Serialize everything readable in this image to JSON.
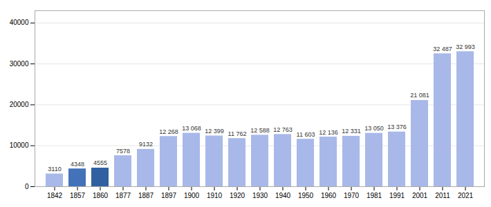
{
  "chart_data": {
    "type": "bar",
    "categories": [
      "1842",
      "1857",
      "1860",
      "1877",
      "1887",
      "1897",
      "1900",
      "1910",
      "1920",
      "1930",
      "1940",
      "1950",
      "1960",
      "1970",
      "1981",
      "1991",
      "2001",
      "2011",
      "2021"
    ],
    "values": [
      3110,
      4348,
      4555,
      7578,
      9132,
      12268,
      13068,
      12399,
      11762,
      12588,
      12763,
      11603,
      12136,
      12331,
      13050,
      13376,
      21081,
      32487,
      32993
    ],
    "value_labels": [
      "3110",
      "4348",
      "4555",
      "7578",
      "9132",
      "12 268",
      "13 068",
      "12 399",
      "11 762",
      "12 588",
      "12 763",
      "11 603",
      "12 136",
      "12 331",
      "13 050",
      "13 376",
      "21 081",
      "32 487",
      "32 993"
    ],
    "colors": [
      "#a8b8e8",
      "#4472b8",
      "#3060a0",
      "#a8b8e8",
      "#a8b8e8",
      "#a8b8e8",
      "#a8b8e8",
      "#a8b8e8",
      "#a8b8e8",
      "#a8b8e8",
      "#a8b8e8",
      "#a8b8e8",
      "#a8b8e8",
      "#a8b8e8",
      "#a8b8e8",
      "#a8b8e8",
      "#a8b8e8",
      "#a8b8e8",
      "#a8b8e8"
    ],
    "ylim": [
      0,
      43000
    ],
    "yticks": [
      0,
      10000,
      20000,
      30000,
      40000
    ],
    "grid": true,
    "data_labels": true
  }
}
